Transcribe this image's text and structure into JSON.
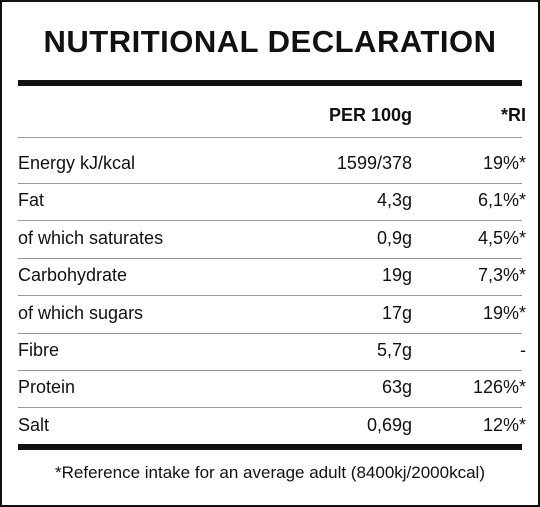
{
  "title": "NUTRITIONAL DECLARATION",
  "header": [
    "PER 100g",
    "*RI"
  ],
  "rows": [
    [
      "Energy kJ/kcal",
      "1599/378",
      "19%*"
    ],
    [
      "Fat",
      "4,3g",
      "6,1%*"
    ],
    [
      "of which saturates",
      "0,9g",
      "4,5%*"
    ],
    [
      "Carbohydrate",
      "19g",
      "7,3%*"
    ],
    [
      "of which sugars",
      "17g",
      "19%*"
    ],
    [
      "Fibre",
      "5,7g",
      "-"
    ],
    [
      "Protein",
      "63g",
      "126%*"
    ],
    [
      "Salt",
      "0,69g",
      "12%*"
    ]
  ],
  "footnote": "*Reference intake for an average adult (8400kj/2000kcal)"
}
